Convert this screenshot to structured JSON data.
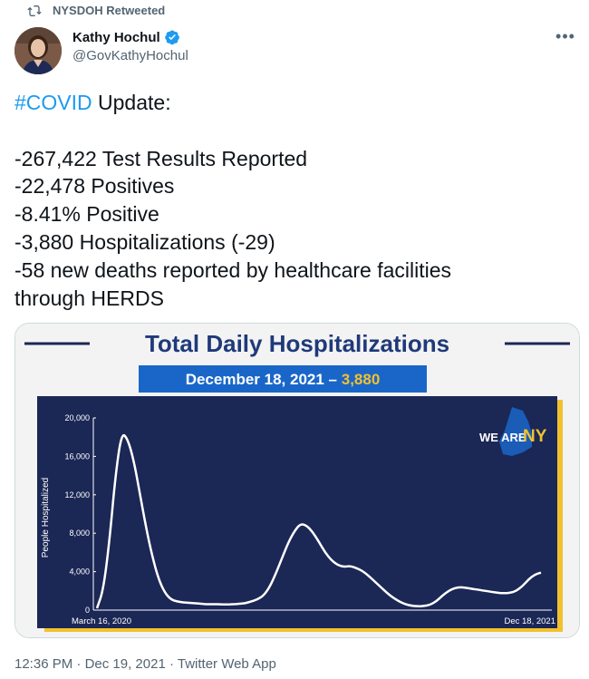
{
  "retweet": {
    "label": "NYSDOH Retweeted"
  },
  "author": {
    "name": "Kathy Hochul",
    "handle": "@GovKathyHochul",
    "verified": true,
    "verified_color": "#1d9bf0"
  },
  "tweet": {
    "hashtag": "#COVID",
    "headline_rest": " Update:",
    "lines": [
      "-267,422 Test Results Reported",
      "-22,478 Positives",
      "-8.41% Positive",
      "-3,880 Hospitalizations (-29)",
      "-58 new deaths reported by healthcare facilities",
      "through HERDS"
    ]
  },
  "media": {
    "title": "Total Daily Hospitalizations",
    "banner_date": "December 18, 2021 –",
    "banner_value": "3,880",
    "logo_text_a": "WE ARE",
    "logo_text_b": "NY",
    "colors": {
      "navy": "#1b2755",
      "title_blue": "#1f3a7a",
      "banner_blue": "#1a66c8",
      "gold": "#f2c12e",
      "line": "#ffffff"
    }
  },
  "chart_data": {
    "type": "line",
    "ylabel": "People Hospitalized",
    "ylim": [
      0,
      20000
    ],
    "yticks": [
      "20,000",
      "16,000",
      "12,000",
      "8,000",
      "4,000",
      "0"
    ],
    "ytick_values": [
      20000,
      16000,
      12000,
      8000,
      4000,
      0
    ],
    "xlabels": [
      "March 16, 2020",
      "Dec 18, 2021"
    ],
    "grid": false,
    "series": [
      {
        "name": "",
        "values": [
          200,
          2000,
          7000,
          14000,
          18500,
          17800,
          15500,
          12000,
          8500,
          5500,
          3200,
          1800,
          1100,
          900,
          800,
          750,
          700,
          650,
          600,
          620,
          600,
          580,
          600,
          650,
          700,
          900,
          1100,
          1500,
          2400,
          3800,
          5400,
          7000,
          8200,
          9000,
          8800,
          8100,
          7100,
          6000,
          5200,
          4700,
          4500,
          4600,
          4400,
          4100,
          3600,
          3000,
          2400,
          1800,
          1300,
          900,
          600,
          450,
          400,
          420,
          550,
          900,
          1500,
          2000,
          2300,
          2400,
          2300,
          2200,
          2100,
          2000,
          1900,
          1800,
          1750,
          1800,
          2000,
          2500,
          3200,
          3700,
          3900
        ]
      }
    ]
  },
  "footer": {
    "time": "12:36 PM",
    "sep1": " · ",
    "date": "Dec 19, 2021",
    "sep2": " · ",
    "source": "Twitter Web App"
  }
}
